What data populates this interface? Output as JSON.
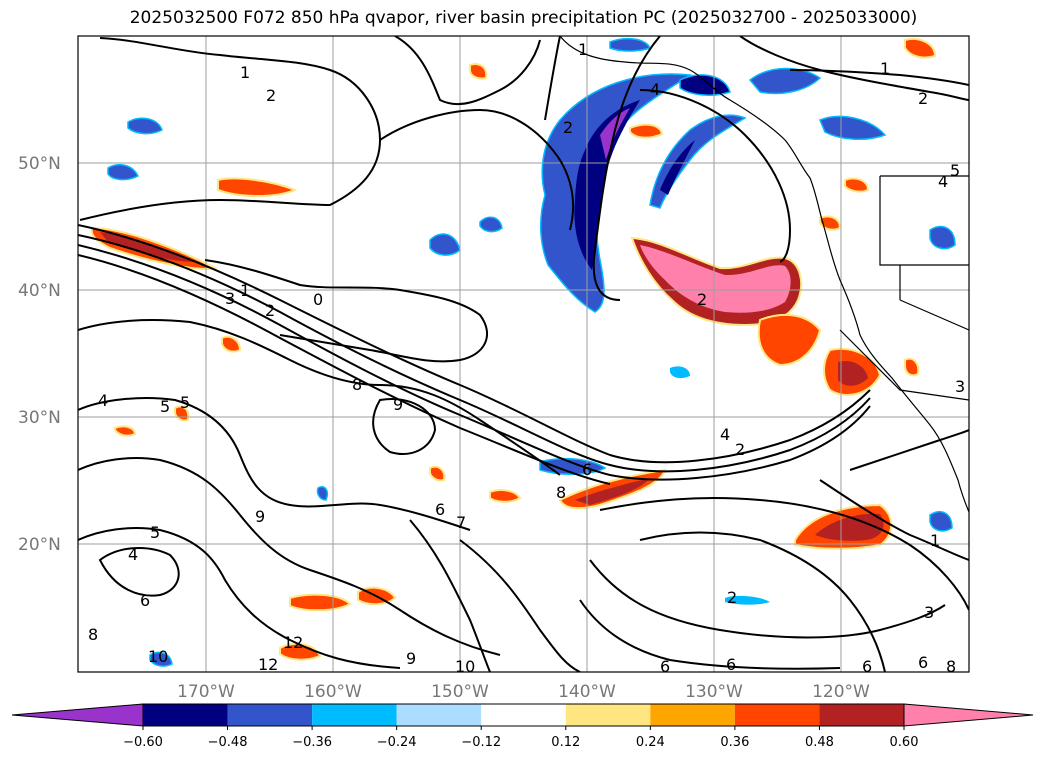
{
  "title": "2025032500 F072 850 hPa qvapor, river basin precipitation PC (2025032700 - 2025033000)",
  "map": {
    "lat_labels": [
      "50°N",
      "40°N",
      "30°N",
      "20°N"
    ],
    "lon_labels": [
      "170°W",
      "160°W",
      "150°W",
      "140°W",
      "130°W",
      "120°W"
    ],
    "gridline_color": "#9e9e9e"
  },
  "contour_labels": [
    {
      "text": "1"
    },
    {
      "text": "1"
    },
    {
      "text": "2"
    },
    {
      "text": "2"
    },
    {
      "text": "2"
    },
    {
      "text": "1"
    },
    {
      "text": "4"
    },
    {
      "text": "5"
    },
    {
      "text": "4"
    },
    {
      "text": "1"
    },
    {
      "text": "3"
    },
    {
      "text": "2"
    },
    {
      "text": "0"
    },
    {
      "text": "2"
    },
    {
      "text": "8"
    },
    {
      "text": "9"
    },
    {
      "text": "4"
    },
    {
      "text": "5"
    },
    {
      "text": "5"
    },
    {
      "text": "6"
    },
    {
      "text": "8"
    },
    {
      "text": "4"
    },
    {
      "text": "9"
    },
    {
      "text": "6"
    },
    {
      "text": "7"
    },
    {
      "text": "5"
    },
    {
      "text": "4"
    },
    {
      "text": "6"
    },
    {
      "text": "8"
    },
    {
      "text": "10"
    },
    {
      "text": "12"
    },
    {
      "text": "12"
    },
    {
      "text": "9"
    },
    {
      "text": "10"
    },
    {
      "text": "2"
    },
    {
      "text": "3"
    },
    {
      "text": "2"
    },
    {
      "text": "6"
    },
    {
      "text": "6"
    },
    {
      "text": "8"
    },
    {
      "text": "3"
    },
    {
      "text": "1"
    },
    {
      "text": "6"
    },
    {
      "text": "6"
    }
  ],
  "colorbar": {
    "colors": [
      "#9933cc",
      "#000080",
      "#3355cc",
      "#00bbff",
      "#aaddff",
      "#ffffff",
      "#ffe680",
      "#ffa500",
      "#ff4500",
      "#b22222",
      "#ff80aa"
    ],
    "ticks": [
      "−0.60",
      "−0.48",
      "−0.36",
      "−0.24",
      "−0.12",
      "0.12",
      "0.24",
      "0.36",
      "0.48",
      "0.60"
    ]
  }
}
